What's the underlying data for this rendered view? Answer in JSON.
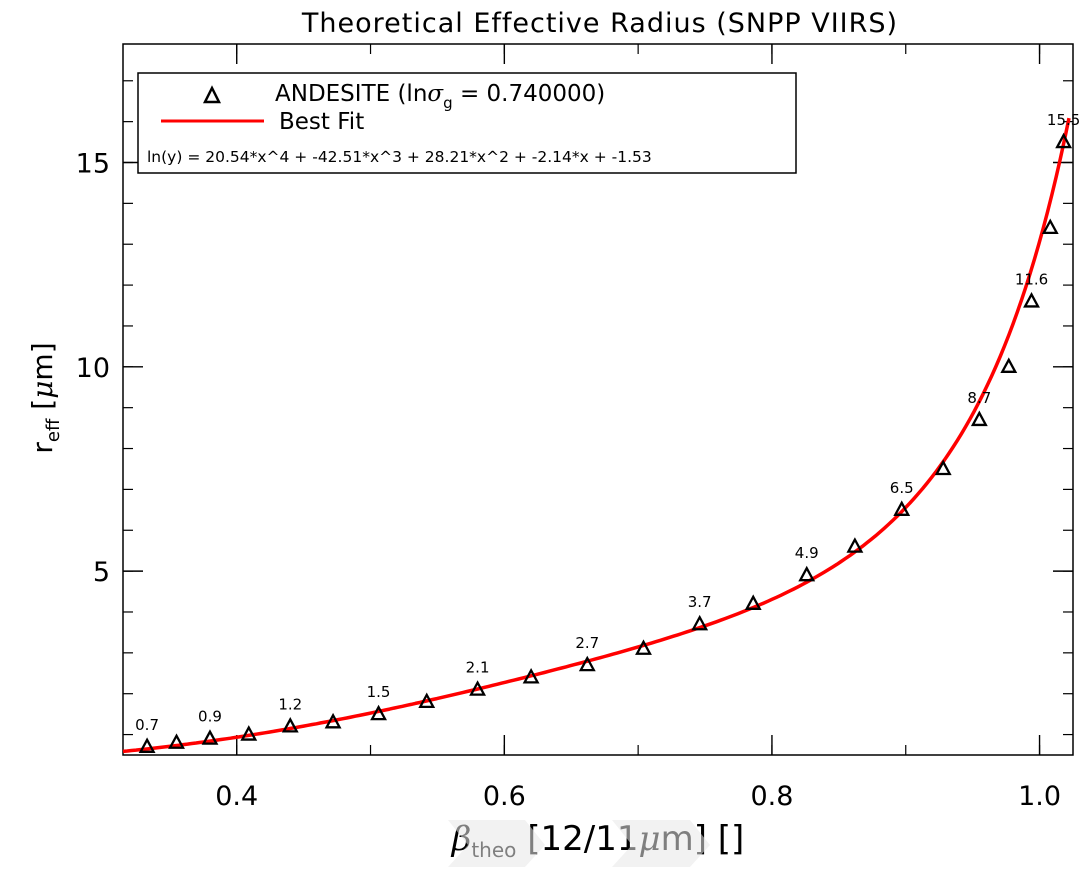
{
  "chart_data": {
    "type": "scatter",
    "title": "Theoretical Effective Radius (SNPP VIIRS)",
    "xlabel": {
      "symbol": "β",
      "sub": "theo",
      "rest": "[12/11",
      "mu": "μ",
      "unit_tail": "m] []"
    },
    "ylabel": {
      "main": "r",
      "sub": "eff",
      "bracket_open": "[",
      "mu": "μ",
      "unit_tail": "m]"
    },
    "xlim": [
      0.315,
      1.025
    ],
    "ylim": [
      0.5,
      17.9
    ],
    "x_ticks": [
      {
        "v": 0.4,
        "label": "0.4"
      },
      {
        "v": 0.6,
        "label": "0.6"
      },
      {
        "v": 0.8,
        "label": "0.8"
      },
      {
        "v": 1.0,
        "label": "1.0"
      }
    ],
    "y_ticks": [
      {
        "v": 5,
        "label": "5"
      },
      {
        "v": 10,
        "label": "10"
      },
      {
        "v": 15,
        "label": "15"
      }
    ],
    "x_minor_step": 0.1,
    "y_minor_step": 1,
    "grid": false,
    "legend": {
      "position": "top-left",
      "marker_entry": {
        "main": "ANDESITE (ln",
        "sigma": "σ",
        "sub": "g",
        "tail": " = 0.740000)"
      },
      "line_entry": "Best Fit",
      "equation": "ln(y) = 20.54*x^4 + -42.51*x^3 + 28.21*x^2 + -2.14*x + -1.53"
    },
    "series": [
      {
        "name": "ANDESITE",
        "kind": "markers",
        "marker": "triangle-open",
        "color": "#000000",
        "points": [
          {
            "x": 0.333,
            "y": 0.7,
            "label": "0.7"
          },
          {
            "x": 0.355,
            "y": 0.8
          },
          {
            "x": 0.38,
            "y": 0.9,
            "label": "0.9"
          },
          {
            "x": 0.409,
            "y": 1.0
          },
          {
            "x": 0.44,
            "y": 1.2,
            "label": "1.2"
          },
          {
            "x": 0.472,
            "y": 1.3
          },
          {
            "x": 0.506,
            "y": 1.5,
            "label": "1.5"
          },
          {
            "x": 0.542,
            "y": 1.8
          },
          {
            "x": 0.58,
            "y": 2.1,
            "label": "2.1"
          },
          {
            "x": 0.62,
            "y": 2.4
          },
          {
            "x": 0.662,
            "y": 2.7,
            "label": "2.7"
          },
          {
            "x": 0.704,
            "y": 3.1
          },
          {
            "x": 0.746,
            "y": 3.7,
            "label": "3.7"
          },
          {
            "x": 0.786,
            "y": 4.2
          },
          {
            "x": 0.826,
            "y": 4.9,
            "label": "4.9"
          },
          {
            "x": 0.862,
            "y": 5.6
          },
          {
            "x": 0.897,
            "y": 6.5,
            "label": "6.5"
          },
          {
            "x": 0.928,
            "y": 7.5
          },
          {
            "x": 0.955,
            "y": 8.7,
            "label": "8.7"
          },
          {
            "x": 0.977,
            "y": 10.0
          },
          {
            "x": 0.994,
            "y": 11.6,
            "label": "11.6"
          },
          {
            "x": 1.008,
            "y": 13.4
          },
          {
            "x": 1.018,
            "y": 15.5,
            "label": "15.5"
          }
        ]
      },
      {
        "name": "Best Fit",
        "kind": "line",
        "color": "#ff0000",
        "x_start": 0.315,
        "x_end": 1.022,
        "coefficients": [
          -1.53,
          -2.14,
          28.21,
          -42.51,
          20.54
        ]
      }
    ]
  }
}
